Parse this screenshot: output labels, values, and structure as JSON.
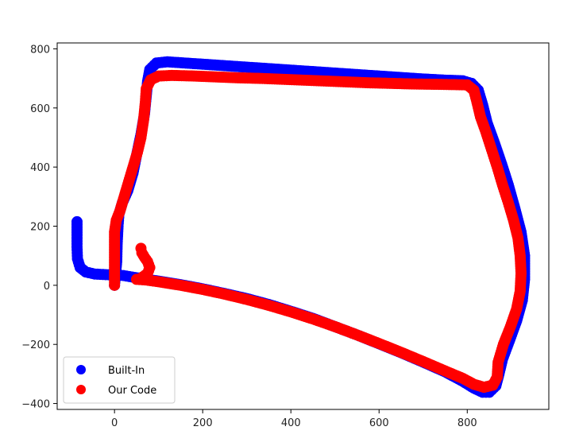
{
  "chart_data": {
    "type": "scatter",
    "title": "",
    "xlabel": "",
    "ylabel": "",
    "xlim": [
      -130,
      985
    ],
    "ylim": [
      -420,
      820
    ],
    "xticks": [
      0,
      200,
      400,
      600,
      800
    ],
    "yticks": [
      -400,
      -200,
      0,
      200,
      400,
      600,
      800
    ],
    "grid": false,
    "legend_position": "lower-left",
    "series": [
      {
        "name": "Built-In",
        "color": "#0000ff",
        "points": [
          [
            -85,
            215
          ],
          [
            -85,
            170
          ],
          [
            -85,
            130
          ],
          [
            -84,
            90
          ],
          [
            -78,
            60
          ],
          [
            -65,
            45
          ],
          [
            -45,
            38
          ],
          [
            -20,
            36
          ],
          [
            0,
            35
          ],
          [
            20,
            33
          ],
          [
            40,
            28
          ],
          [
            60,
            23
          ],
          [
            100,
            14
          ],
          [
            150,
            2
          ],
          [
            200,
            -12
          ],
          [
            250,
            -28
          ],
          [
            300,
            -45
          ],
          [
            350,
            -65
          ],
          [
            400,
            -88
          ],
          [
            450,
            -112
          ],
          [
            500,
            -140
          ],
          [
            550,
            -168
          ],
          [
            600,
            -198
          ],
          [
            650,
            -228
          ],
          [
            700,
            -260
          ],
          [
            750,
            -293
          ],
          [
            790,
            -325
          ],
          [
            815,
            -348
          ],
          [
            835,
            -362
          ],
          [
            850,
            -362
          ],
          [
            865,
            -340
          ],
          [
            872,
            -300
          ],
          [
            880,
            -250
          ],
          [
            895,
            -190
          ],
          [
            912,
            -120
          ],
          [
            925,
            -50
          ],
          [
            930,
            20
          ],
          [
            930,
            100
          ],
          [
            922,
            180
          ],
          [
            908,
            260
          ],
          [
            893,
            340
          ],
          [
            878,
            410
          ],
          [
            862,
            480
          ],
          [
            845,
            550
          ],
          [
            835,
            610
          ],
          [
            825,
            660
          ],
          [
            810,
            683
          ],
          [
            790,
            692
          ],
          [
            750,
            694
          ],
          [
            700,
            698
          ],
          [
            650,
            703
          ],
          [
            600,
            708
          ],
          [
            550,
            713
          ],
          [
            500,
            718
          ],
          [
            450,
            723
          ],
          [
            400,
            728
          ],
          [
            350,
            733
          ],
          [
            300,
            738
          ],
          [
            250,
            743
          ],
          [
            200,
            748
          ],
          [
            150,
            753
          ],
          [
            120,
            756
          ],
          [
            95,
            752
          ],
          [
            80,
            730
          ],
          [
            75,
            690
          ],
          [
            72,
            640
          ],
          [
            68,
            580
          ],
          [
            60,
            510
          ],
          [
            50,
            440
          ],
          [
            42,
            380
          ],
          [
            30,
            320
          ],
          [
            18,
            280
          ],
          [
            10,
            240
          ],
          [
            8,
            200
          ],
          [
            6,
            140
          ],
          [
            5,
            80
          ],
          [
            2,
            30
          ],
          [
            0,
            0
          ]
        ]
      },
      {
        "name": "Our Code",
        "color": "#ff0000",
        "points": [
          [
            0,
            0
          ],
          [
            0,
            60
          ],
          [
            0,
            120
          ],
          [
            0,
            180
          ],
          [
            4,
            220
          ],
          [
            12,
            250
          ],
          [
            22,
            300
          ],
          [
            32,
            350
          ],
          [
            42,
            400
          ],
          [
            52,
            450
          ],
          [
            60,
            500
          ],
          [
            66,
            560
          ],
          [
            70,
            620
          ],
          [
            72,
            665
          ],
          [
            82,
            695
          ],
          [
            100,
            708
          ],
          [
            130,
            710
          ],
          [
            180,
            708
          ],
          [
            230,
            705
          ],
          [
            280,
            702
          ],
          [
            330,
            700
          ],
          [
            380,
            697
          ],
          [
            430,
            694
          ],
          [
            480,
            691
          ],
          [
            530,
            688
          ],
          [
            580,
            685
          ],
          [
            630,
            683
          ],
          [
            680,
            681
          ],
          [
            730,
            680
          ],
          [
            770,
            679
          ],
          [
            800,
            678
          ],
          [
            815,
            660
          ],
          [
            822,
            620
          ],
          [
            830,
            570
          ],
          [
            842,
            520
          ],
          [
            855,
            460
          ],
          [
            868,
            400
          ],
          [
            880,
            340
          ],
          [
            893,
            280
          ],
          [
            905,
            220
          ],
          [
            915,
            160
          ],
          [
            920,
            100
          ],
          [
            922,
            40
          ],
          [
            920,
            -20
          ],
          [
            912,
            -80
          ],
          [
            898,
            -140
          ],
          [
            882,
            -200
          ],
          [
            870,
            -260
          ],
          [
            868,
            -310
          ],
          [
            858,
            -338
          ],
          [
            838,
            -345
          ],
          [
            815,
            -335
          ],
          [
            790,
            -315
          ],
          [
            750,
            -290
          ],
          [
            700,
            -258
          ],
          [
            650,
            -227
          ],
          [
            600,
            -197
          ],
          [
            550,
            -168
          ],
          [
            500,
            -140
          ],
          [
            450,
            -114
          ],
          [
            400,
            -90
          ],
          [
            350,
            -68
          ],
          [
            300,
            -48
          ],
          [
            250,
            -30
          ],
          [
            200,
            -14
          ],
          [
            150,
            0
          ],
          [
            100,
            12
          ],
          [
            70,
            18
          ],
          [
            50,
            20
          ],
          [
            60,
            24
          ],
          [
            75,
            40
          ],
          [
            80,
            60
          ],
          [
            75,
            80
          ],
          [
            68,
            95
          ],
          [
            62,
            110
          ],
          [
            60,
            125
          ]
        ]
      }
    ]
  }
}
